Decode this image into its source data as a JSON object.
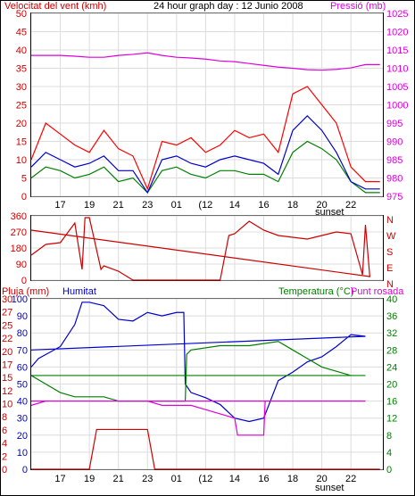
{
  "chart_data": [
    {
      "type": "line",
      "title": "24 hour graph day : 12 Junio 2008",
      "left_axis": {
        "label": "Velocitat del vent (kmh)",
        "range": [
          0,
          50
        ],
        "ticks": [
          0,
          5,
          10,
          15,
          20,
          25,
          30,
          35,
          40,
          45,
          50
        ]
      },
      "right_axis": {
        "label": "Pressió (mb)",
        "range": [
          975,
          1025
        ],
        "ticks": [
          975,
          980,
          985,
          990,
          995,
          1000,
          1005,
          1010,
          1015,
          1020,
          1025
        ]
      },
      "x_tick_labels": [
        "17",
        "19",
        "21",
        "23",
        "01",
        "(12",
        "14",
        "16",
        "18",
        "20",
        "22"
      ],
      "sunset_label": "sunset",
      "grid": true,
      "colors": {
        "gust": "#ff0000",
        "average": "#008000",
        "wind_speed": "#0000cc",
        "pressure": "#dd00dd"
      },
      "series": [
        {
          "axis": "right",
          "color": "#dd00dd",
          "x": [
            15,
            16,
            17,
            18,
            19,
            20,
            21,
            22,
            23,
            0,
            1,
            2,
            3,
            4,
            5,
            6,
            7,
            8,
            9,
            10,
            11,
            12,
            13,
            14,
            15
          ],
          "values": [
            1013.5,
            1013.5,
            1013.5,
            1013.3,
            1013,
            1013,
            1013.5,
            1013.8,
            1014.2,
            1013.5,
            1013,
            1012.8,
            1012.5,
            1012,
            1011.8,
            1011.3,
            1010.8,
            1010.3,
            1010,
            1009.6,
            1009.5,
            1009.7,
            1010.1,
            1011,
            1011
          ]
        },
        {
          "axis": "left",
          "color": "#ff0000",
          "x": [
            15,
            16,
            17,
            18,
            19,
            20,
            21,
            22,
            23,
            0,
            1,
            2,
            3,
            4,
            5,
            6,
            7,
            8,
            9,
            10,
            11,
            12,
            13,
            14,
            15
          ],
          "values": [
            10,
            20,
            17,
            14,
            12,
            18,
            13,
            11,
            2,
            15,
            14,
            16,
            12,
            14,
            18,
            16,
            17,
            12,
            28,
            30,
            25,
            20,
            8,
            4,
            4
          ]
        },
        {
          "axis": "left",
          "color": "#008000",
          "x": [
            15,
            16,
            17,
            18,
            19,
            20,
            21,
            22,
            23,
            0,
            1,
            2,
            3,
            4,
            5,
            6,
            7,
            8,
            9,
            10,
            11,
            12,
            13,
            14,
            15
          ],
          "values": [
            5,
            8,
            7,
            5,
            6,
            8,
            4,
            5,
            1,
            7,
            8,
            6,
            5,
            7,
            7,
            6,
            6,
            4,
            12,
            15,
            13,
            10,
            4,
            1,
            1
          ]
        },
        {
          "axis": "left",
          "color": "#0000cc",
          "x": [
            15,
            16,
            17,
            18,
            19,
            20,
            21,
            22,
            23,
            0,
            1,
            2,
            3,
            4,
            5,
            6,
            7,
            8,
            9,
            10,
            11,
            12,
            13,
            14,
            15
          ],
          "values": [
            8,
            12,
            10,
            8,
            9,
            11,
            7,
            7,
            1,
            10,
            11,
            9,
            8,
            10,
            11,
            10,
            9,
            6,
            18,
            22,
            18,
            12,
            4,
            2,
            2
          ]
        }
      ]
    },
    {
      "type": "line",
      "left_axis": {
        "range": [
          0,
          360
        ],
        "ticks": [
          0,
          90,
          180,
          270,
          360
        ]
      },
      "right_labels": [
        "N",
        "W",
        "S",
        "E",
        "N"
      ],
      "series": [
        {
          "color": "#cc0000",
          "x": [
            15,
            16,
            17,
            18,
            18.5,
            18.7,
            19,
            19.8,
            20,
            21,
            22,
            23,
            0,
            1,
            2,
            3,
            4,
            4.6,
            5,
            6,
            7,
            8,
            9,
            10,
            11,
            12,
            13,
            13.8,
            14,
            14.3,
            15
          ],
          "values": [
            140,
            200,
            210,
            320,
            60,
            350,
            350,
            60,
            80,
            50,
            0,
            0,
            0,
            0,
            0,
            0,
            0,
            250,
            260,
            330,
            280,
            250,
            240,
            230,
            250,
            270,
            260,
            30,
            310,
            20,
            280
          ]
        }
      ]
    },
    {
      "type": "line",
      "left_labels": {
        "title": "Pluja (mm)",
        "ticks": [
          "0",
          "2",
          "4",
          "6",
          "8",
          "10",
          "12",
          "15",
          "17",
          "20",
          "22",
          "25",
          "27",
          "30"
        ]
      },
      "left2_labels": {
        "title": "Humitat",
        "ticks": [
          "0",
          "10",
          "20",
          "30",
          "40",
          "50",
          "60",
          "70",
          "80",
          "90",
          "100"
        ]
      },
      "right_labels": {
        "title": "Temperatura (°C)",
        "ticks": [
          0,
          4,
          8,
          12,
          16,
          20,
          24,
          28,
          32,
          36,
          40
        ]
      },
      "punt_rosada_label": "Punt rosada",
      "series": [
        {
          "name": "Humitat",
          "color": "#0000cc",
          "axis": "humidity",
          "x": [
            15,
            15.5,
            17,
            18,
            18.5,
            19,
            20,
            21,
            22,
            23,
            0,
            1,
            1.5,
            1.6,
            2,
            3,
            4,
            5,
            6,
            7,
            8,
            9,
            10,
            11,
            12,
            13,
            14,
            15
          ],
          "values": [
            60,
            65,
            72,
            85,
            98,
            98,
            96,
            88,
            87,
            92,
            90,
            92,
            92,
            50,
            45,
            42,
            38,
            30,
            28,
            30,
            52,
            57,
            63,
            66,
            72,
            79,
            78,
            70
          ]
        },
        {
          "name": "Temperatura",
          "color": "#008000",
          "axis": "temp",
          "x": [
            15,
            16,
            17,
            18,
            19,
            20,
            21,
            22,
            23,
            0,
            1,
            1.6,
            1.7,
            2,
            4,
            6,
            8,
            9,
            10,
            11,
            12,
            13,
            14,
            15
          ],
          "values": [
            22,
            20,
            18,
            17,
            17,
            17,
            16,
            16,
            16,
            16,
            16,
            16,
            27,
            28,
            29,
            29,
            30,
            28,
            26,
            24,
            23,
            22,
            22,
            22
          ]
        },
        {
          "name": "Punt rosada",
          "color": "#dd00dd",
          "axis": "temp",
          "x": [
            15,
            16,
            17,
            18,
            19,
            20,
            21,
            22,
            23,
            0,
            1,
            2,
            3,
            4,
            5,
            5.2,
            6,
            7,
            7.1,
            8,
            9,
            10,
            11,
            12,
            13,
            14,
            15
          ],
          "values": [
            15,
            16,
            16,
            16,
            16,
            16,
            16,
            16,
            16,
            15,
            15,
            15,
            14,
            13,
            12,
            8,
            8,
            8,
            16,
            16,
            16,
            16,
            16,
            16,
            16,
            16,
            16
          ]
        },
        {
          "name": "Pluja",
          "color": "#cc0000",
          "axis": "rain",
          "x": [
            15,
            18,
            19,
            19.5,
            20,
            21,
            22,
            23,
            23.5,
            24,
            25,
            26,
            27,
            28,
            29,
            30,
            31,
            32,
            33,
            34,
            35,
            36,
            37,
            38,
            39
          ],
          "values": [
            0,
            0,
            0,
            7,
            7,
            7,
            7,
            7,
            0,
            0,
            0,
            0,
            0,
            0,
            0,
            0,
            0,
            0,
            0,
            0,
            0,
            0,
            0,
            0,
            0
          ]
        }
      ]
    }
  ]
}
